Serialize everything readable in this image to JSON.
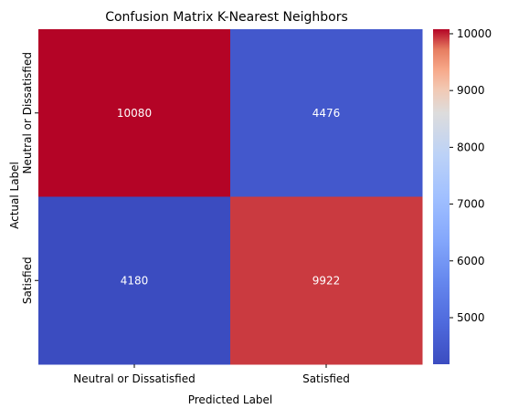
{
  "chart_data": {
    "type": "heatmap",
    "title": "Confusion Matrix K-Nearest Neighbors",
    "xlabel": "Predicted Label",
    "ylabel": "Actual Label",
    "x_categories": [
      "Neutral or Dissatisfied",
      "Satisfied"
    ],
    "y_categories": [
      "Neutral or Dissatisfied",
      "Satisfied"
    ],
    "values": [
      [
        10080,
        4476
      ],
      [
        4180,
        9922
      ]
    ],
    "colormap": "coolwarm",
    "colorbar": {
      "range": [
        4180,
        10080
      ],
      "ticks": [
        5000,
        6000,
        7000,
        8000,
        9000,
        10000
      ]
    },
    "cell_label_color": "#ffffff"
  }
}
